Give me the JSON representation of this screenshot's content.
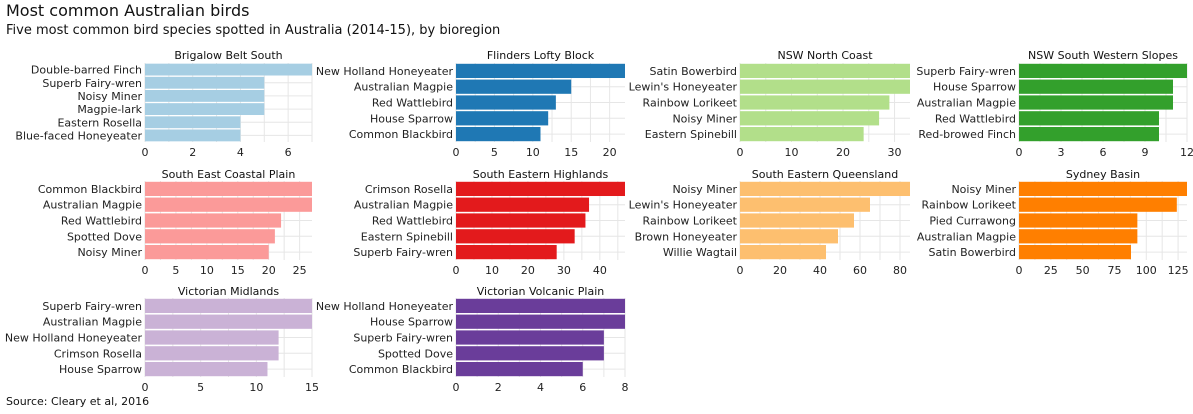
{
  "title": "Most common Australian birds",
  "subtitle": "Five most common bird species spotted in Australia (2014-15), by bioregion",
  "caption": "Source: Cleary et al, 2016",
  "chart_data": [
    {
      "type": "bar",
      "orientation": "horizontal",
      "title": "Brigalow Belt South",
      "color": "#a6cee3",
      "categories": [
        "Double-barred Finch",
        "Superb Fairy-wren",
        "Noisy Miner",
        "Magpie-lark",
        "Eastern Rosella",
        "Blue-faced Honeyeater"
      ],
      "values": [
        7,
        5,
        5,
        5,
        4,
        4
      ],
      "xlim": [
        0,
        7
      ],
      "ticks": [
        0,
        2,
        4,
        6
      ]
    },
    {
      "type": "bar",
      "orientation": "horizontal",
      "title": "Flinders Lofty Block",
      "color": "#1f78b4",
      "categories": [
        "New Holland Honeyeater",
        "Australian Magpie",
        "Red Wattlebird",
        "House Sparrow",
        "Common Blackbird"
      ],
      "values": [
        22,
        15,
        13,
        12,
        11
      ],
      "xlim": [
        0,
        22
      ],
      "ticks": [
        0,
        5,
        10,
        15,
        20
      ]
    },
    {
      "type": "bar",
      "orientation": "horizontal",
      "title": "NSW North Coast",
      "color": "#b2df8a",
      "categories": [
        "Satin Bowerbird",
        "Lewin's Honeyeater",
        "Rainbow Lorikeet",
        "Noisy Miner",
        "Eastern Spinebill"
      ],
      "values": [
        33,
        33,
        29,
        27,
        24
      ],
      "xlim": [
        0,
        33
      ],
      "ticks": [
        0,
        10,
        20,
        30
      ]
    },
    {
      "type": "bar",
      "orientation": "horizontal",
      "title": "NSW South Western Slopes",
      "color": "#33a02c",
      "categories": [
        "Superb Fairy-wren",
        "House Sparrow",
        "Australian Magpie",
        "Red Wattlebird",
        "Red-browed Finch"
      ],
      "values": [
        12,
        11,
        11,
        10,
        10
      ],
      "xlim": [
        0,
        12
      ],
      "ticks": [
        0,
        3,
        6,
        9,
        12
      ]
    },
    {
      "type": "bar",
      "orientation": "horizontal",
      "title": "South East Coastal Plain",
      "color": "#fb9a99",
      "categories": [
        "Common Blackbird",
        "Australian Magpie",
        "Red Wattlebird",
        "Spotted Dove",
        "Noisy Miner"
      ],
      "values": [
        27,
        27,
        22,
        21,
        20
      ],
      "xlim": [
        0,
        27
      ],
      "ticks": [
        0,
        5,
        10,
        15,
        20,
        25
      ]
    },
    {
      "type": "bar",
      "orientation": "horizontal",
      "title": "South Eastern Highlands",
      "color": "#e31a1c",
      "categories": [
        "Crimson Rosella",
        "Australian Magpie",
        "Red Wattlebird",
        "Eastern Spinebill",
        "Superb Fairy-wren"
      ],
      "values": [
        47,
        37,
        36,
        33,
        28
      ],
      "xlim": [
        0,
        47
      ],
      "ticks": [
        0,
        10,
        20,
        30,
        40
      ]
    },
    {
      "type": "bar",
      "orientation": "horizontal",
      "title": "South Eastern Queensland",
      "color": "#fdbf6f",
      "categories": [
        "Noisy Miner",
        "Lewin's Honeyeater",
        "Rainbow Lorikeet",
        "Brown Honeyeater",
        "Willie Wagtail"
      ],
      "values": [
        85,
        65,
        57,
        49,
        43
      ],
      "xlim": [
        0,
        85
      ],
      "ticks": [
        0,
        20,
        40,
        60,
        80
      ]
    },
    {
      "type": "bar",
      "orientation": "horizontal",
      "title": "Sydney Basin",
      "color": "#ff7f00",
      "categories": [
        "Noisy Miner",
        "Rainbow Lorikeet",
        "Pied Currawong",
        "Australian Magpie",
        "Satin Bowerbird"
      ],
      "values": [
        132,
        124,
        93,
        93,
        88
      ],
      "xlim": [
        0,
        132
      ],
      "ticks": [
        0,
        25,
        50,
        75,
        100,
        125
      ]
    },
    {
      "type": "bar",
      "orientation": "horizontal",
      "title": "Victorian Midlands",
      "color": "#cab2d6",
      "categories": [
        "Superb Fairy-wren",
        "Australian Magpie",
        "New Holland Honeyeater",
        "Crimson Rosella",
        "House Sparrow"
      ],
      "values": [
        15,
        15,
        12,
        12,
        11
      ],
      "xlim": [
        0,
        15
      ],
      "ticks": [
        0,
        5,
        10,
        15
      ]
    },
    {
      "type": "bar",
      "orientation": "horizontal",
      "title": "Victorian Volcanic Plain",
      "color": "#6a3d9a",
      "categories": [
        "New Holland Honeyeater",
        "House Sparrow",
        "Superb Fairy-wren",
        "Spotted Dove",
        "Common Blackbird"
      ],
      "values": [
        8,
        8,
        7,
        7,
        6
      ],
      "xlim": [
        0,
        8
      ],
      "ticks": [
        0,
        2,
        4,
        6,
        8
      ]
    }
  ]
}
